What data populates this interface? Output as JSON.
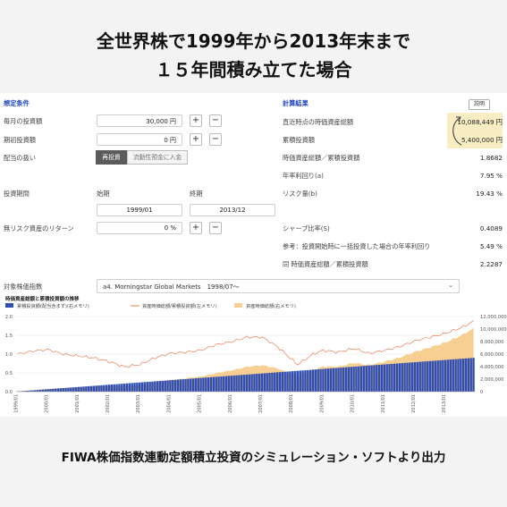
{
  "headline": {
    "line1": "全世界株で1999年から2013年末まで",
    "line2": "１５年間積み立てた場合"
  },
  "footer": "FIWA株価指数連動定額積立投資のシミュレーション・ソフトより出力",
  "assumptions": {
    "section_title": "想定条件",
    "monthly_label": "毎月の投資額",
    "monthly_value": "30,000 円",
    "initial_label": "期初投資額",
    "initial_value": "0 円",
    "dividend_label": "配当の扱い",
    "dividend_opt1": "再投資",
    "dividend_opt2": "流動性預金に入金",
    "period_label": "投資期間",
    "start_label": "始期",
    "end_label": "終期",
    "start_value": "1999/01",
    "end_value": "2013/12",
    "riskfree_label": "無リスク資産のリターン",
    "riskfree_value": "0 %",
    "plus": "+",
    "minus": "−"
  },
  "results": {
    "section_title": "計算結果",
    "explain_button": "説明",
    "rows": [
      {
        "label": "直近時点の時価資産総額",
        "value": "10,088,449 円"
      },
      {
        "label": "累積投資額",
        "value": "5,400,000 円"
      },
      {
        "label": "時価資産総額／累積投資額",
        "value": "1.8682"
      },
      {
        "label": "年率利回り(a)",
        "value": "7.95 %"
      },
      {
        "label": "リスク量(b)",
        "value": "19.43 %"
      },
      {
        "label": "シャープ比率(S)",
        "value": "0.4089"
      },
      {
        "label": "参考：投資開始時に一括投資した場合の年率利回り",
        "value": "5.49 %"
      },
      {
        "label": "同 時価資産総額／累積投資額",
        "value": "2.2287"
      }
    ]
  },
  "index_selector": {
    "label": "対象株価指数",
    "value": "a4. Morningstar Global Markets　1998/07～",
    "chevron": "⌄"
  },
  "colors": {
    "bar": "#2f4fb5",
    "ratio_line": "#e8805a",
    "asset_area": "#f7cf92",
    "accent": "#1a3fbf",
    "highlight": "#f9eec3"
  },
  "chart_data": {
    "type": "bar",
    "title": "時価資産総額と累積投資額の推移",
    "legend": [
      {
        "name": "累積投資額(配当含まず)(右メモリ)",
        "kind": "bar",
        "color": "#2f4fb5"
      },
      {
        "name": "資産時価総額/累積投資額(左メモリ)",
        "kind": "line",
        "color": "#e8805a"
      },
      {
        "name": "資産時価総額(右メモリ)",
        "kind": "area",
        "color": "#f7cf92"
      }
    ],
    "y_left_ticks": [
      "0.0",
      "0.5",
      "1.0",
      "1.5",
      "2.0"
    ],
    "y_left_lim": [
      0,
      2.0
    ],
    "y_right_ticks": [
      "0",
      "2,000,000",
      "4,000,000",
      "6,000,000",
      "8,000,000",
      "10,000,000",
      "12,000,000"
    ],
    "y_right_lim": [
      0,
      12000000
    ],
    "x_ticks": [
      "1999/01",
      "2000/01",
      "2001/01",
      "2002/01",
      "2003/01",
      "2004/01",
      "2005/01",
      "2006/01",
      "2007/01",
      "2008/01",
      "2009/01",
      "2010/01",
      "2011/01",
      "2012/01",
      "2013/01"
    ],
    "monthly_investment": 30000,
    "ratio_anchors": [
      {
        "x": 0,
        "y": 1.0
      },
      {
        "x": 6,
        "y": 1.08
      },
      {
        "x": 12,
        "y": 1.12
      },
      {
        "x": 18,
        "y": 1.0
      },
      {
        "x": 24,
        "y": 0.95
      },
      {
        "x": 30,
        "y": 0.9
      },
      {
        "x": 36,
        "y": 0.8
      },
      {
        "x": 42,
        "y": 0.66
      },
      {
        "x": 48,
        "y": 0.72
      },
      {
        "x": 54,
        "y": 0.9
      },
      {
        "x": 60,
        "y": 1.02
      },
      {
        "x": 66,
        "y": 1.05
      },
      {
        "x": 72,
        "y": 1.1
      },
      {
        "x": 78,
        "y": 1.25
      },
      {
        "x": 84,
        "y": 1.33
      },
      {
        "x": 90,
        "y": 1.45
      },
      {
        "x": 96,
        "y": 1.45
      },
      {
        "x": 102,
        "y": 1.2
      },
      {
        "x": 110,
        "y": 0.72
      },
      {
        "x": 116,
        "y": 1.0
      },
      {
        "x": 120,
        "y": 1.1
      },
      {
        "x": 126,
        "y": 1.05
      },
      {
        "x": 132,
        "y": 1.15
      },
      {
        "x": 138,
        "y": 1.02
      },
      {
        "x": 144,
        "y": 1.1
      },
      {
        "x": 150,
        "y": 1.2
      },
      {
        "x": 156,
        "y": 1.35
      },
      {
        "x": 162,
        "y": 1.45
      },
      {
        "x": 168,
        "y": 1.55
      },
      {
        "x": 174,
        "y": 1.7
      },
      {
        "x": 179,
        "y": 1.87
      }
    ]
  }
}
